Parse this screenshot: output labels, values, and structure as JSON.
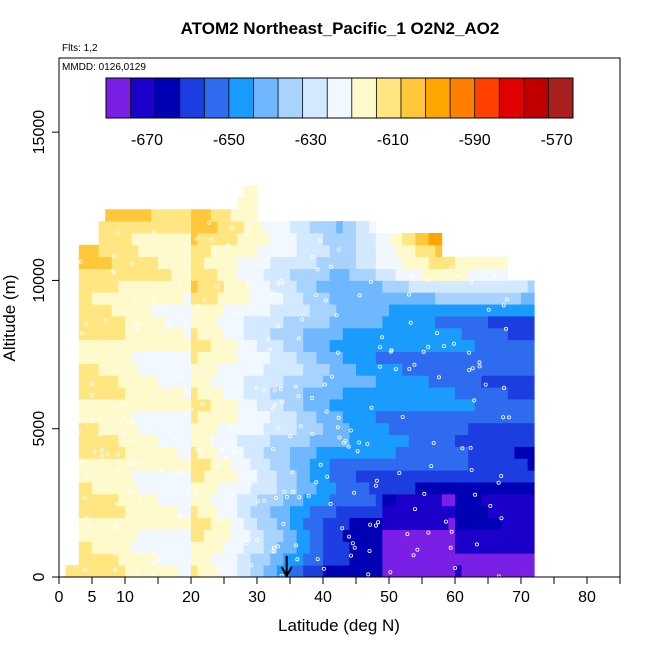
{
  "chart_data": {
    "type": "heatmap",
    "title": "ATOM2 Northeast_Pacific_1 O2N2_AO2",
    "flights_label": "Flts: 1,2",
    "dates_label": "MMDD: 0126,0129",
    "xlabel": "Latitude (deg N)",
    "ylabel": "Altitude (m)",
    "xlim": [
      0,
      85
    ],
    "ylim": [
      0,
      17500
    ],
    "x_ticks": [
      "0",
      "5",
      "10",
      "20",
      "30",
      "40",
      "50",
      "60",
      "70",
      "80"
    ],
    "x_tick_values": [
      0,
      5,
      10,
      20,
      30,
      40,
      50,
      60,
      70,
      80
    ],
    "y_ticks": [
      "0",
      "5000",
      "10000",
      "15000"
    ],
    "y_tick_values": [
      0,
      5000,
      10000,
      15000
    ],
    "colorbar": {
      "ticks": [
        "-670",
        "-650",
        "-630",
        "-610",
        "-590",
        "-570"
      ],
      "tick_values": [
        -670,
        -650,
        -630,
        -610,
        -590,
        -570
      ],
      "range": [
        -680,
        -566
      ],
      "colors": [
        "#7a1fe6",
        "#1a00c8",
        "#0000b4",
        "#1c3ee0",
        "#2f6bef",
        "#1a9cff",
        "#6fb8ff",
        "#a9d3ff",
        "#d3e9ff",
        "#f2f8ff",
        "#fffacc",
        "#ffe680",
        "#ffc83a",
        "#ffa500",
        "#ff7f00",
        "#ff4000",
        "#e00000",
        "#c00000",
        "#a82020"
      ]
    },
    "marker": {
      "x": 34.5,
      "direction": "down"
    },
    "grid": false,
    "legend": "colorbar-top"
  }
}
